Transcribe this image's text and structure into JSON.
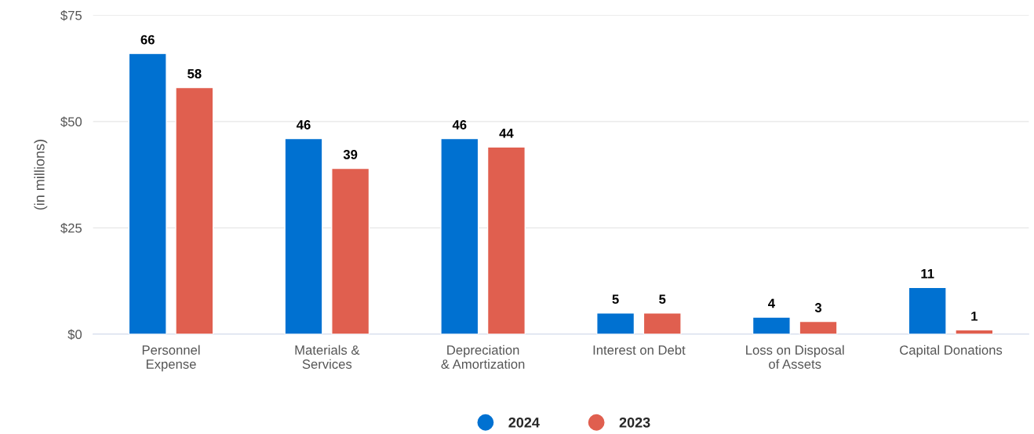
{
  "chart_data": {
    "type": "bar",
    "categories": [
      "Personnel\nExpense",
      "Materials &\nServices",
      "Depreciation\n& Amortization",
      "Interest on Debt",
      "Loss on Disposal\nof Assets",
      "Capital Donations"
    ],
    "series": [
      {
        "name": "2024",
        "color": "#0071d1",
        "values": [
          66,
          46,
          46,
          5,
          4,
          11
        ]
      },
      {
        "name": "2023",
        "color": "#e05f4f",
        "values": [
          58,
          39,
          44,
          5,
          3,
          1
        ]
      }
    ],
    "ylabel": "(in millions)",
    "ylim": [
      0,
      75
    ],
    "yticks": [
      {
        "value": 0,
        "label": "$0"
      },
      {
        "value": 25,
        "label": "$25"
      },
      {
        "value": 50,
        "label": "$50"
      },
      {
        "value": 75,
        "label": "$75"
      }
    ],
    "grid": "y",
    "legend": "bottom",
    "data_labels": true
  }
}
